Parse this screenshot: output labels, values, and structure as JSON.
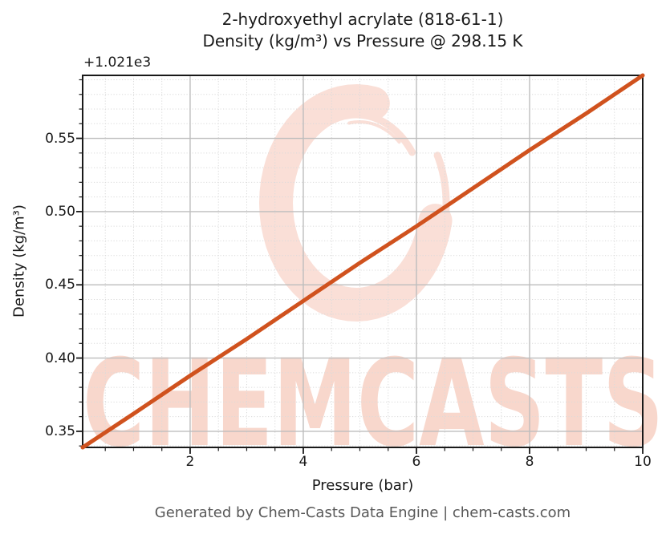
{
  "header": {
    "title_line1": "2-hydroxyethyl acrylate (818-61-1)",
    "title_line2": "Density (kg/m³) vs Pressure @ 298.15 K"
  },
  "footer": "Generated by Chem-Casts Data Engine | chem-casts.com",
  "watermark": {
    "text": "CHEMCASTS",
    "ring_color": "#fadfd7",
    "text_color": "#f8d7cc"
  },
  "chart_data": {
    "type": "line",
    "title": "2-hydroxyethyl acrylate (818-61-1)\nDensity (kg/m³) vs Pressure @ 298.15 K",
    "xlabel": "Pressure (bar)",
    "ylabel": "Density (kg/m³)",
    "y_offset_text": "+1.021e3",
    "xlim": [
      0.1,
      10
    ],
    "ylim": [
      1021.339,
      1021.593
    ],
    "x_ticks": [
      2,
      4,
      6,
      8,
      10
    ],
    "x_tick_labels": [
      "2",
      "4",
      "6",
      "8",
      "10"
    ],
    "x_minor_step": 0.5,
    "y_ticks": [
      1021.35,
      1021.4,
      1021.45,
      1021.5,
      1021.55
    ],
    "y_tick_labels": [
      "0.35",
      "0.40",
      "0.45",
      "0.50",
      "0.55"
    ],
    "y_minor_step": 0.01,
    "grid": true,
    "legend": "none",
    "line_color": "#d0521e",
    "series": [
      {
        "name": "Density vs Pressure @ 298.15 K",
        "x": [
          0.1,
          1,
          2,
          3,
          4,
          5,
          6,
          7,
          8,
          9,
          10
        ],
        "y": [
          1021.339,
          1021.362,
          1021.388,
          1021.413,
          1021.439,
          1021.465,
          1021.49,
          1021.516,
          1021.542,
          1021.567,
          1021.593
        ]
      }
    ]
  }
}
